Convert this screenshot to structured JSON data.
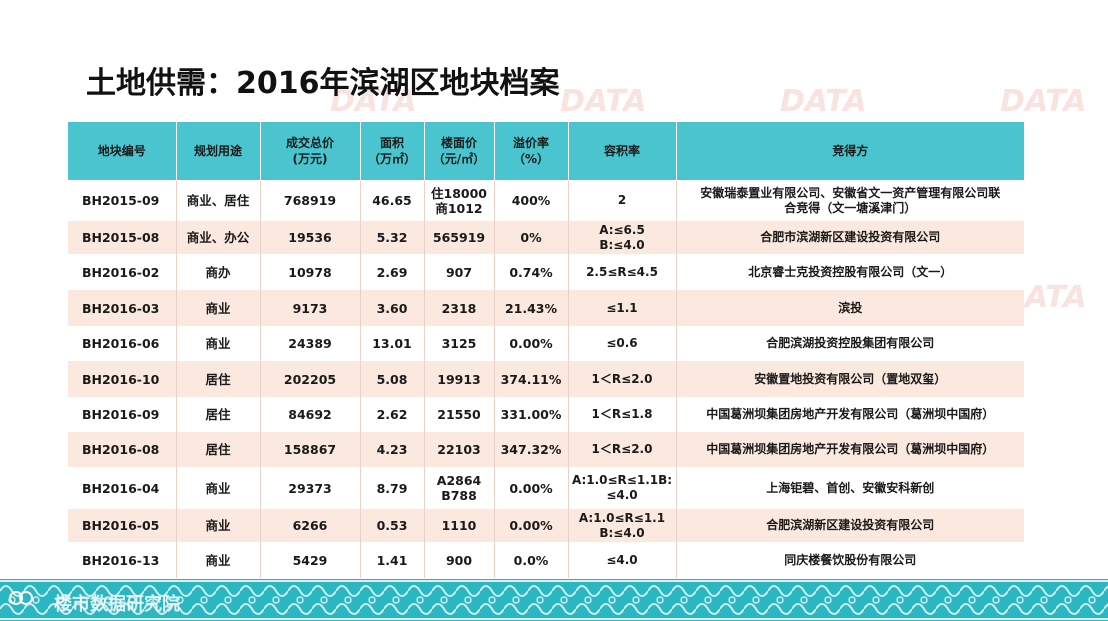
{
  "title": "土地供需：2016年滨湖区地块档案",
  "table": {
    "headers": [
      "地块编号",
      "规划用途",
      "成交总价\n(万元)",
      "面积\n（万㎡）",
      "楼面价\n（元/㎡）",
      "溢价率\n（%）",
      "容积率",
      "竞得方"
    ],
    "rows": [
      [
        "BH2015-09",
        "商业、居住",
        "768919",
        "46.65",
        "住18000\n商1012",
        "400%",
        "2",
        "安徽瑞泰置业有限公司、安徽省文一资产管理有限公司联\n合竞得（文一塘溪津门）"
      ],
      [
        "BH2015-08",
        "商业、办公",
        "19536",
        "5.32",
        "565919",
        "0%",
        "A:≤6.5\nB:≤4.0",
        "合肥市滨湖新区建设投资有限公司"
      ],
      [
        "BH2016-02",
        "商办",
        "10978",
        "2.69",
        "907",
        "0.74%",
        "2.5≤R≤4.5",
        "北京睿士克投资控股有限公司（文一）"
      ],
      [
        "BH2016-03",
        "商业",
        "9173",
        "3.60",
        "2318",
        "21.43%",
        "≤1.1",
        "滨投"
      ],
      [
        "BH2016-06",
        "商业",
        "24389",
        "13.01",
        "3125",
        "0.00%",
        "≤0.6",
        "合肥滨湖投资控股集团有限公司"
      ],
      [
        "BH2016-10",
        "居住",
        "202205",
        "5.08",
        "19913",
        "374.11%",
        "1＜R≤2.0",
        "安徽置地投资有限公司（置地双玺）"
      ],
      [
        "BH2016-09",
        "居住",
        "84692",
        "2.62",
        "21550",
        "331.00%",
        "1＜R≤1.8",
        "中国葛洲坝集团房地产开发有限公司（葛洲坝中国府）"
      ],
      [
        "BH2016-08",
        "居住",
        "158867",
        "4.23",
        "22103",
        "347.32%",
        "1＜R≤2.0",
        "中国葛洲坝集团房地产开发有限公司（葛洲坝中国府）"
      ],
      [
        "BH2016-04",
        "商业",
        "29373",
        "8.79",
        "A2864\nB788",
        "0.00%",
        "A:1.0≤R≤1.1B:\n≤4.0",
        "上海钜碧、首创、安徽安科新创"
      ],
      [
        "BH2016-05",
        "商业",
        "6266",
        "0.53",
        "1110",
        "0.00%",
        "A:1.0≤R≤1.1\nB:≤4.0",
        "合肥滨湖新区建设投资有限公司"
      ],
      [
        "BH2016-13",
        "商业",
        "5429",
        "1.41",
        "900",
        "0.0%",
        "≤4.0",
        "同庆楼餐饮股份有限公司"
      ]
    ]
  },
  "watermark": {
    "brand": "DATA",
    "subtitle": "楼市数据研究院"
  },
  "footer": {
    "text": "楼市数据研究院"
  },
  "colors": {
    "header_bg": "#4ac4cf",
    "row_even_bg": "#fbe9df",
    "footer_bg": "#2bb7c1"
  }
}
